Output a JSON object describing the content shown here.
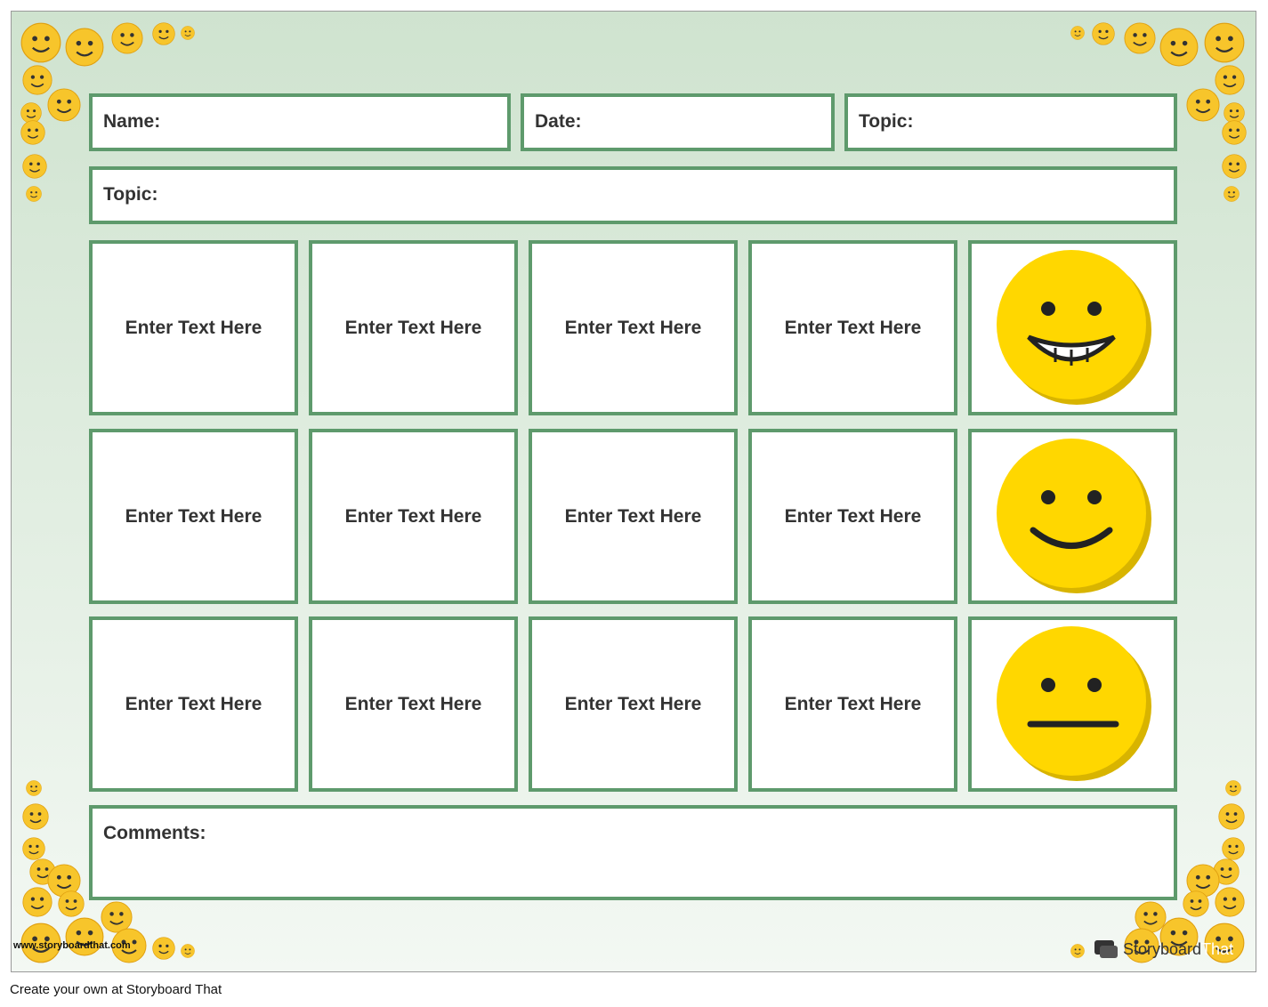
{
  "header": {
    "fields": [
      "Name:",
      "Date:",
      "Topic:"
    ]
  },
  "topic": "Topic:",
  "grid": {
    "rows": [
      [
        "Enter Text Here",
        "Enter Text Here",
        "Enter Text Here",
        "Enter Text Here"
      ],
      [
        "Enter Text Here",
        "Enter Text Here",
        "Enter Text Here",
        "Enter Text Here"
      ],
      [
        "Enter Text Here",
        "Enter Text Here",
        "Enter Text Here",
        "Enter Text Here"
      ]
    ]
  },
  "comments": "Comments:",
  "watermark": "www.storyboardthat.com",
  "logo": {
    "word1": "Storyboard",
    "word2": "That"
  },
  "footer": "Create your own at Storyboard That"
}
